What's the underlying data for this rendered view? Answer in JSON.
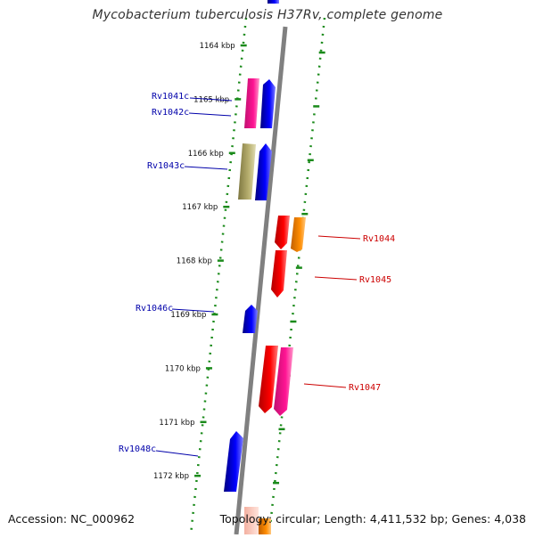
{
  "title": "Mycobacterium tuberculosis H37Rv, complete genome",
  "accession": "Accession: NC_000962",
  "topology": "Topology: circular; Length: 4,411,532 bp; Genes: 4,038",
  "colors": {
    "backbone": "#808080",
    "scale_dots": "#1a8a1a",
    "label_left": "#0000aa",
    "label_right": "#cc0000"
  },
  "scale_ticks": [
    {
      "kbp": 1164,
      "label": "1164 kbp"
    },
    {
      "kbp": 1165,
      "label": "1165 kbp"
    },
    {
      "kbp": 1166,
      "label": "1166 kbp"
    },
    {
      "kbp": 1167,
      "label": "1167 kbp"
    },
    {
      "kbp": 1168,
      "label": "1168 kbp"
    },
    {
      "kbp": 1169,
      "label": "1169 kbp"
    },
    {
      "kbp": 1170,
      "label": "1170 kbp"
    },
    {
      "kbp": 1171,
      "label": "1171 kbp"
    },
    {
      "kbp": 1172,
      "label": "1172 kbp"
    }
  ],
  "genes": [
    {
      "name": "Rv1041c",
      "strand": "-",
      "color": "#ff1493"
    },
    {
      "name": "Rv1042c",
      "strand": "-",
      "color": "#0000ff"
    },
    {
      "name": "Rv1043c",
      "strand": "-",
      "color": "#0000ff"
    },
    {
      "name": "",
      "strand": "-",
      "color": "#b8b070"
    },
    {
      "name": "Rv1044",
      "strand": "+",
      "color": "#ff0000"
    },
    {
      "name": "",
      "strand": "+",
      "color": "#ff8c00"
    },
    {
      "name": "Rv1045",
      "strand": "+",
      "color": "#ff0000"
    },
    {
      "name": "Rv1046c",
      "strand": "-",
      "color": "#0000ff"
    },
    {
      "name": "Rv1047",
      "strand": "+",
      "color": "#ff0000"
    },
    {
      "name": "",
      "strand": "+",
      "color": "#ff1493"
    },
    {
      "name": "Rv1048c",
      "strand": "-",
      "color": "#0000ff"
    }
  ]
}
